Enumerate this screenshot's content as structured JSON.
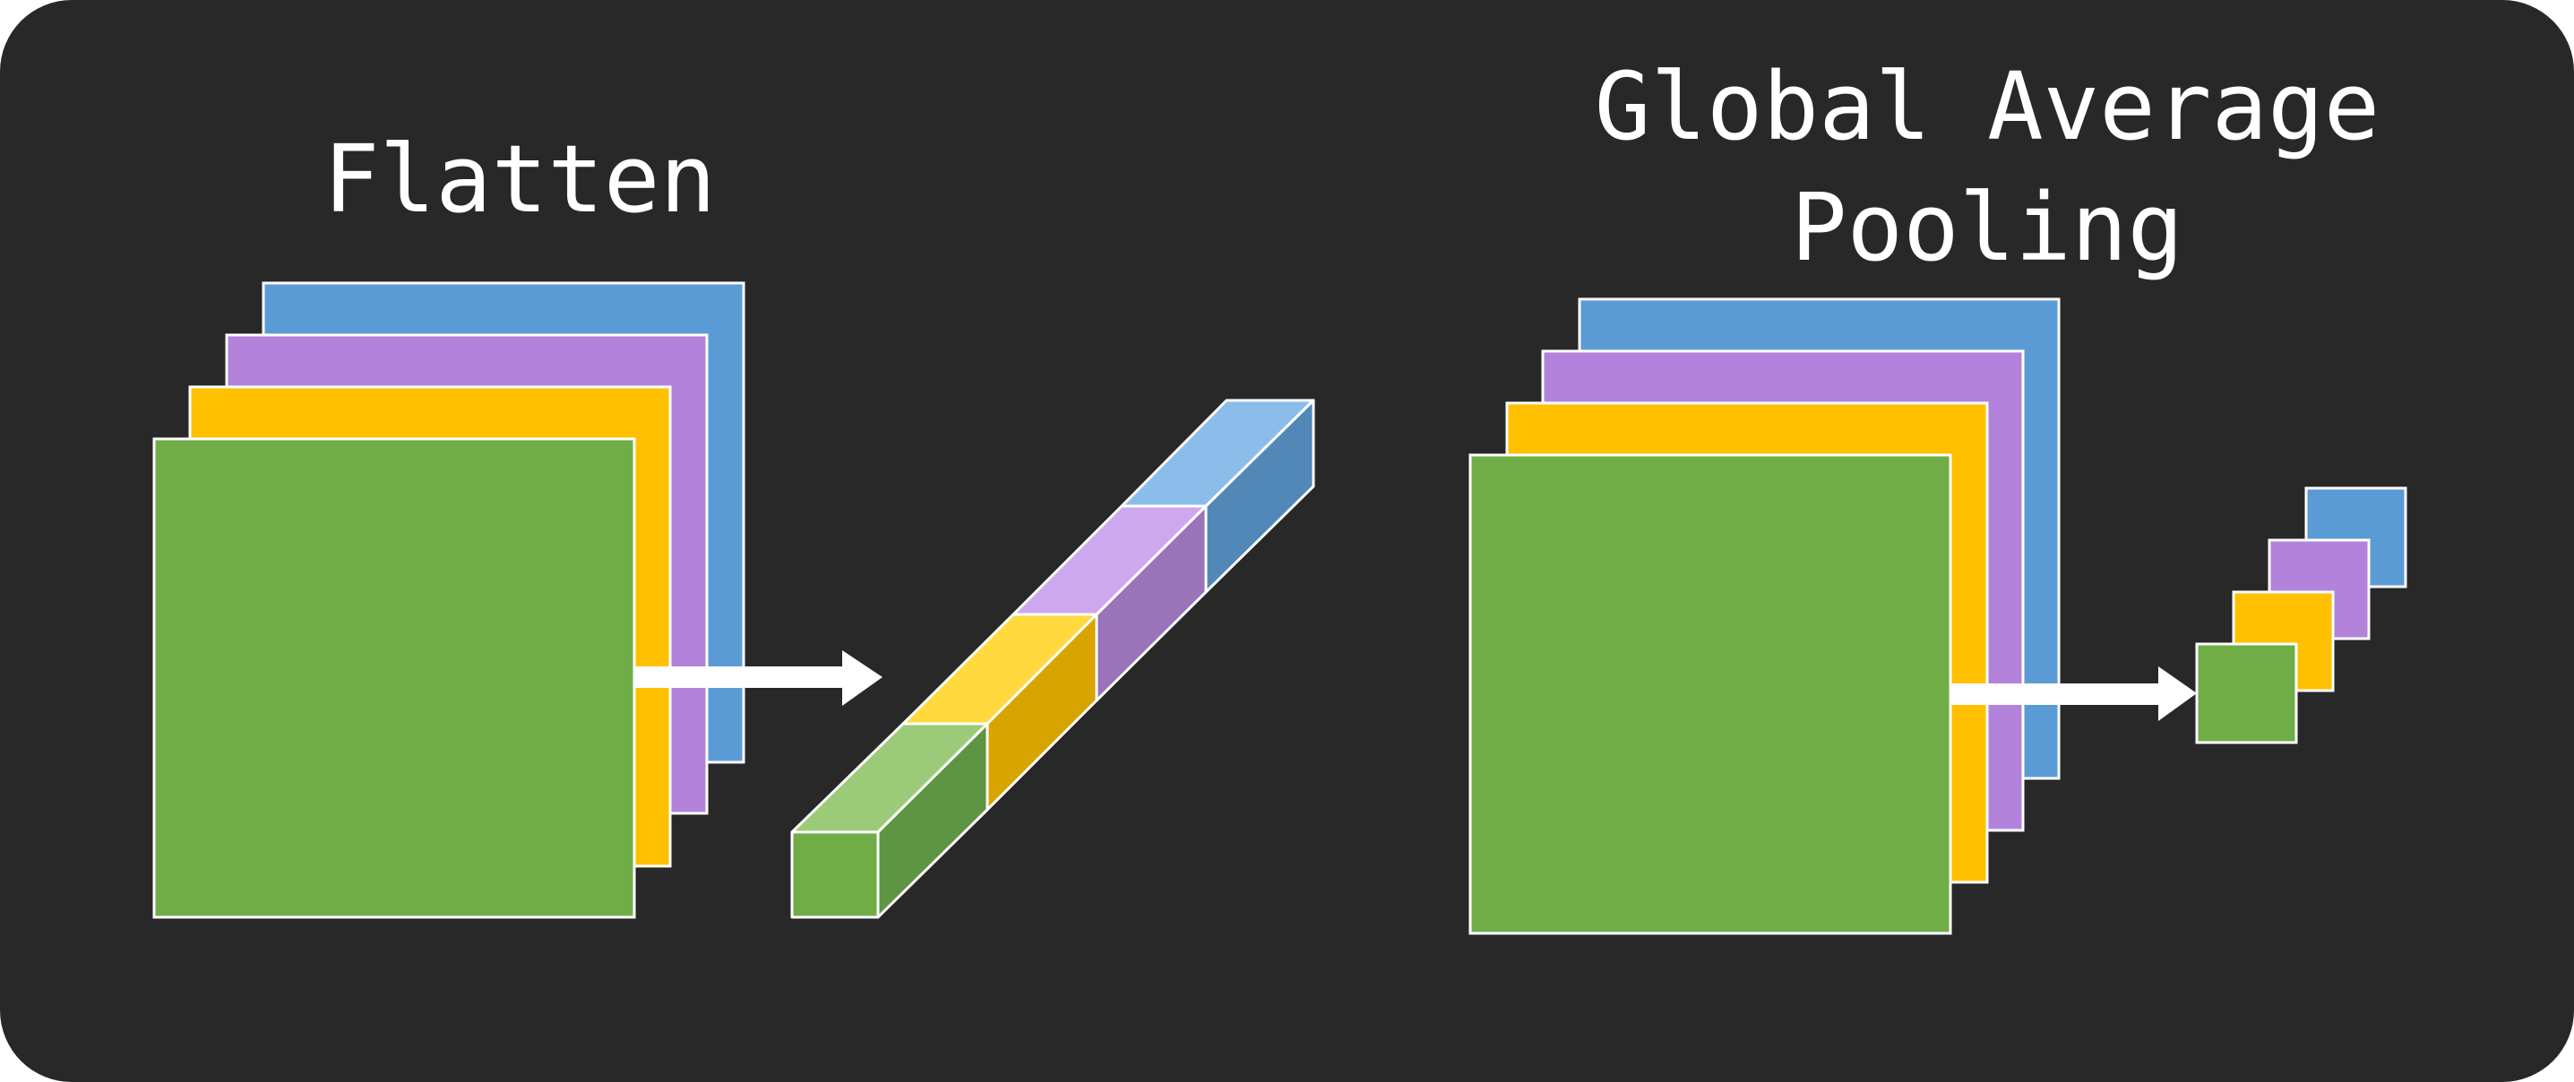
{
  "flatten": {
    "title": "Flatten"
  },
  "gap": {
    "title_line1": "Global Average",
    "title_line2": "Pooling"
  },
  "colors": {
    "background": "#282828",
    "green": "#70AD47",
    "yellow": "#FFC000",
    "purple": "#B383DB",
    "blue": "#5B9BD5",
    "outline": "#ffffff"
  }
}
